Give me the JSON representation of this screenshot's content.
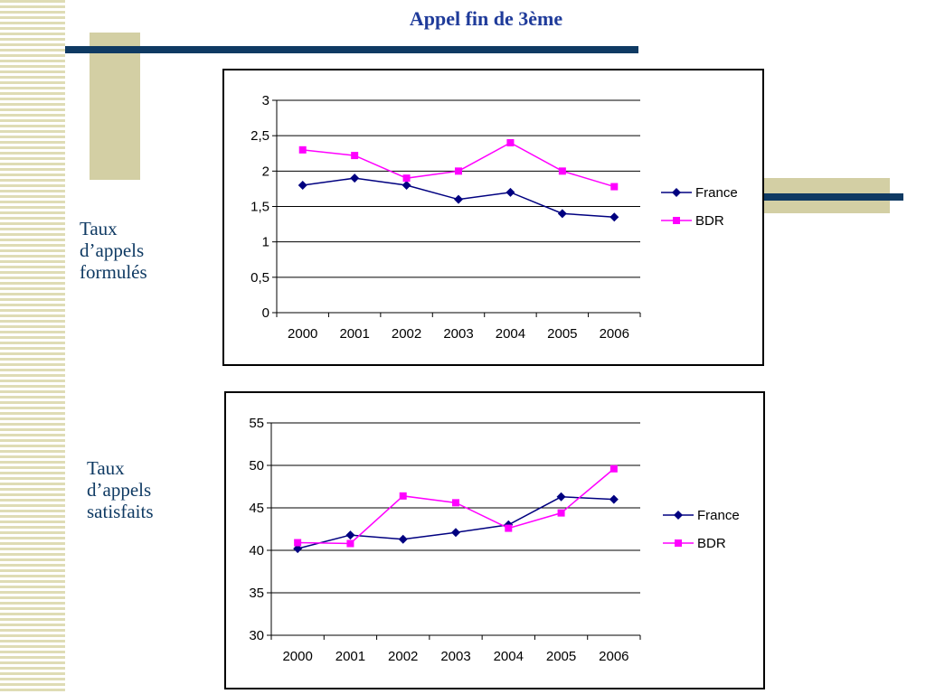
{
  "page": {
    "title": "Appel fin de 3ème"
  },
  "labels": {
    "chart1": [
      "Taux",
      "d’appels",
      "formulés"
    ],
    "chart2": [
      "Taux",
      "d’appels",
      "satisfaits"
    ]
  },
  "colors": {
    "france": "#000080",
    "bdr": "#ff00ff",
    "title": "#1f3b9a",
    "label": "#0f3a63"
  },
  "chart_data": [
    {
      "type": "line",
      "categories": [
        "2000",
        "2001",
        "2002",
        "2003",
        "2004",
        "2005",
        "2006"
      ],
      "series": [
        {
          "name": "France",
          "values": [
            1.8,
            1.9,
            1.8,
            1.6,
            1.7,
            1.4,
            1.35
          ],
          "marker": "diamond"
        },
        {
          "name": "BDR",
          "values": [
            2.3,
            2.22,
            1.9,
            2.0,
            2.4,
            2.0,
            1.78
          ],
          "marker": "square"
        }
      ],
      "ylim": [
        0,
        3
      ],
      "yticks": [
        "0",
        "0,5",
        "1",
        "1,5",
        "2",
        "2,5",
        "3"
      ],
      "grid": true,
      "legend": "right"
    },
    {
      "type": "line",
      "categories": [
        "2000",
        "2001",
        "2002",
        "2003",
        "2004",
        "2005",
        "2006"
      ],
      "series": [
        {
          "name": "France",
          "values": [
            40.2,
            41.8,
            41.3,
            42.1,
            43.0,
            46.3,
            46.0
          ],
          "marker": "diamond"
        },
        {
          "name": "BDR",
          "values": [
            40.9,
            40.8,
            46.4,
            45.6,
            42.6,
            44.4,
            49.6
          ],
          "marker": "square"
        }
      ],
      "ylim": [
        30,
        55
      ],
      "yticks": [
        "30",
        "35",
        "40",
        "45",
        "50",
        "55"
      ],
      "grid": true,
      "legend": "right"
    }
  ]
}
